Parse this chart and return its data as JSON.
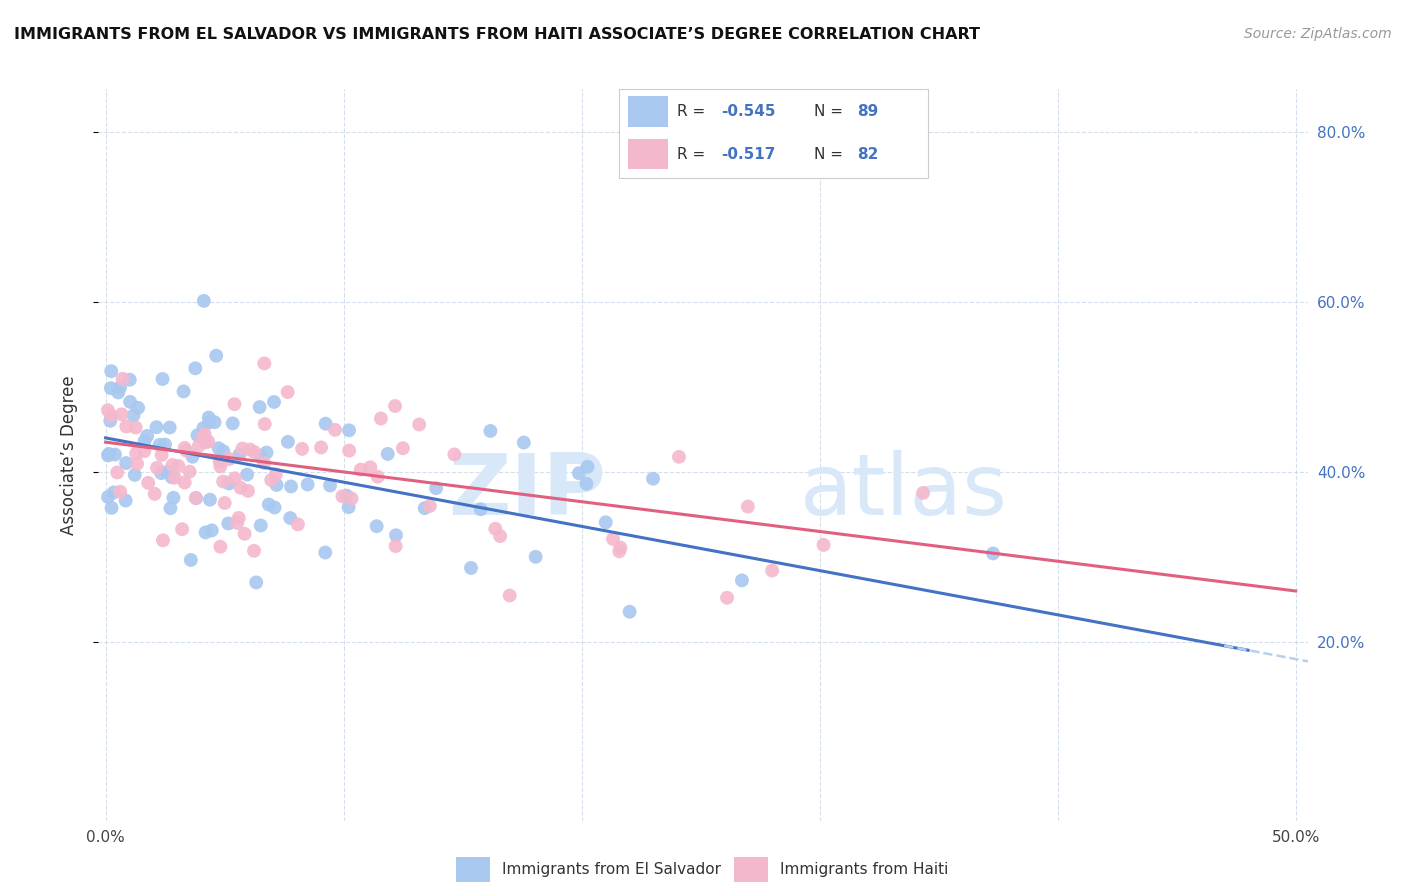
{
  "title": "IMMIGRANTS FROM EL SALVADOR VS IMMIGRANTS FROM HAITI ASSOCIATE’S DEGREE CORRELATION CHART",
  "source_text": "Source: ZipAtlas.com",
  "ylabel": "Associate’s Degree",
  "x_min": 0.0,
  "x_max": 0.5,
  "y_min": 0.0,
  "y_max": 0.85,
  "color_salvador": "#a8c8f0",
  "color_haiti": "#f4b8cc",
  "trendline_salvador_color": "#4472c4",
  "trendline_haiti_color": "#e06080",
  "trendline_ext_color": "#b8d0ec",
  "legend_label_salvador": "Immigrants from El Salvador",
  "legend_label_haiti": "Immigrants from Haiti",
  "r_sal": "-0.545",
  "n_sal": "89",
  "r_hai": "-0.517",
  "n_hai": "82",
  "text_color_blue": "#4472c4",
  "text_color_dark": "#333333",
  "watermark_color": "#d8e8f8"
}
